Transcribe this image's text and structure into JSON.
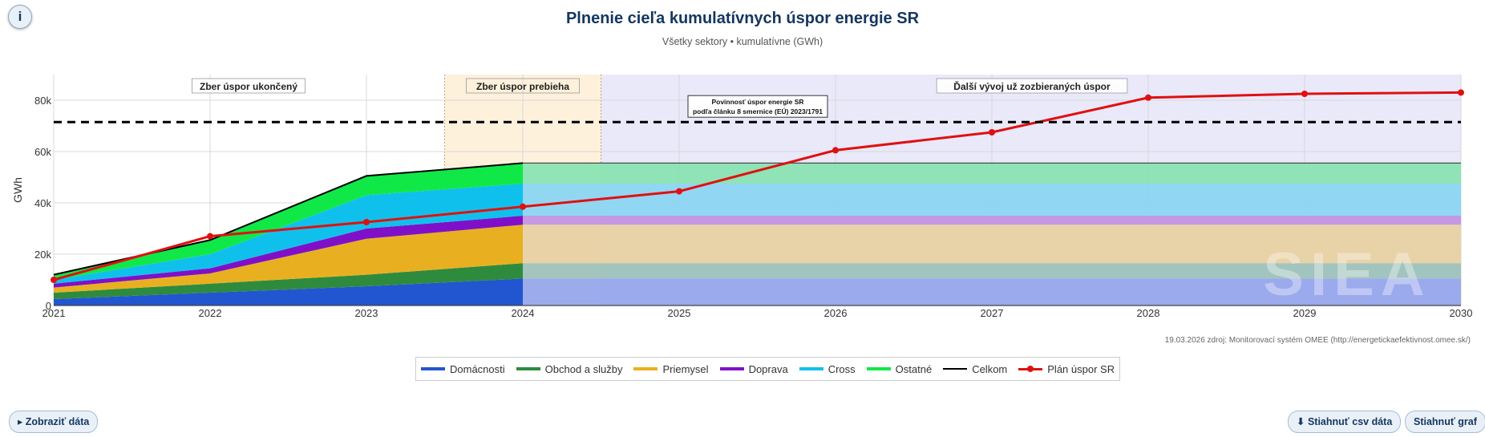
{
  "header": {
    "info_label": "i",
    "title": "Plnenie cieľa kumulatívnych úspor energie SR",
    "subtitle": "Všetky sektory • kumulatívne (GWh)"
  },
  "chart_data": {
    "type": "area",
    "title": "Plnenie cieľa kumulatívnych úspor energie SR",
    "subtitle": "Všetky sektory • kumulatívne (GWh)",
    "xlabel": "",
    "ylabel": "GWh",
    "xlim": [
      2021,
      2030
    ],
    "ylim": [
      0,
      90000
    ],
    "x_ticks": [
      2021,
      2022,
      2023,
      2024,
      2025,
      2026,
      2027,
      2028,
      2029,
      2030
    ],
    "y_ticks": [
      {
        "value": 0,
        "label": "0"
      },
      {
        "value": 20000,
        "label": "20k"
      },
      {
        "value": 40000,
        "label": "40k"
      },
      {
        "value": 60000,
        "label": "60k"
      },
      {
        "value": 80000,
        "label": "80k"
      }
    ],
    "grid": true,
    "x": [
      2021,
      2022,
      2023,
      2024
    ],
    "series": [
      {
        "name": "Domácnosti",
        "color": "#2255d0",
        "projected_color": "#97a7ec",
        "values": [
          2500,
          5000,
          7500,
          10500
        ]
      },
      {
        "name": "Obchod a služby",
        "color": "#2e8b3e",
        "projected_color": "#9ec2ba",
        "values": [
          2500,
          3500,
          4500,
          6000
        ]
      },
      {
        "name": "Priemysel",
        "color": "#e8b020",
        "projected_color": "#e8d1a2",
        "values": [
          2000,
          4000,
          14000,
          15000
        ]
      },
      {
        "name": "Doprava",
        "color": "#8010c8",
        "projected_color": "#c294e4",
        "values": [
          1500,
          2000,
          4000,
          3500
        ]
      },
      {
        "name": "Cross",
        "color": "#10c0ec",
        "projected_color": "#8cd5f2",
        "values": [
          1500,
          5500,
          13000,
          12500
        ]
      },
      {
        "name": "Ostatné",
        "color": "#10e848",
        "projected_color": "#8ae3b2",
        "values": [
          2000,
          5500,
          7500,
          8000
        ]
      }
    ],
    "total": {
      "name": "Celkom",
      "color": "#000000",
      "values": [
        12000,
        25500,
        50500,
        55500
      ]
    },
    "plan": {
      "name": "Plán úspor SR",
      "color": "#e01010",
      "x": [
        2021,
        2022,
        2023,
        2024,
        2025,
        2026,
        2027,
        2028,
        2029,
        2030
      ],
      "values": [
        10000,
        27000,
        32500,
        38500,
        44500,
        60500,
        67500,
        81000,
        82500,
        83000
      ]
    },
    "target": {
      "value": 71500,
      "label_lines": [
        "Povinnosť úspor energie SR",
        "podľa článku 8 smernice (EÚ) 2023/1791"
      ]
    },
    "regions": [
      {
        "label": "Zber úspor ukončený",
        "from": 2021,
        "to": 2023.5,
        "color": "#ffffff"
      },
      {
        "label": "Zber úspor prebieha",
        "from": 2023.5,
        "to": 2024.5,
        "color": "#fdf1dc"
      },
      {
        "label": "Ďalší vývoj už zozbieraných úspor",
        "from": 2024.5,
        "to": 2030,
        "color": "#e9e9fa"
      }
    ],
    "legend_position": "bottom"
  },
  "watermark": "SIEA",
  "source_text": "19.03.2026 zdroj: Monitorovací systém OMEE (http://energetickaefektivnost.omee.sk/)",
  "buttons": {
    "show_data": "▸  Zobraziť dáta",
    "download_csv": "⬇ Stiahnuť csv dáta",
    "download_chart": "Stiahnuť graf"
  }
}
